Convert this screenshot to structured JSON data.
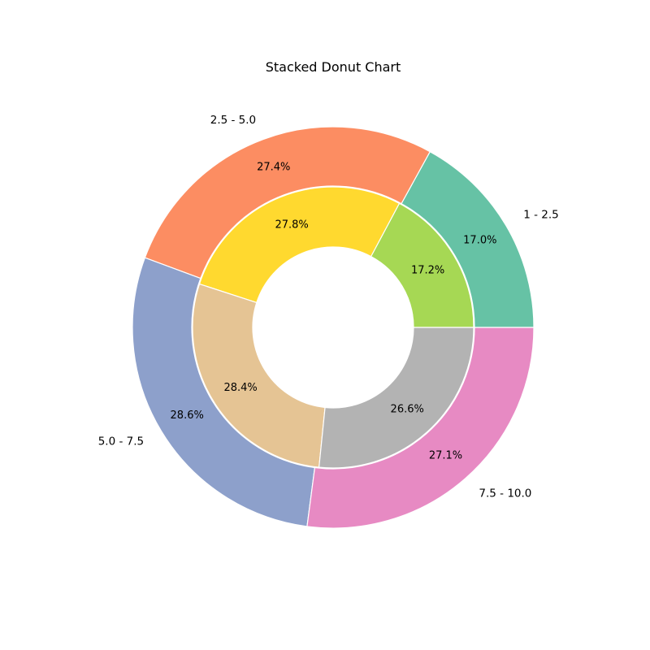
{
  "chart_data": {
    "type": "pie",
    "subtype": "stacked-donut",
    "title": "Stacked Donut Chart",
    "categories": [
      "1 - 2.5",
      "2.5 - 5.0",
      "5.0 - 7.5",
      "7.5 - 10.0"
    ],
    "series": [
      {
        "ring": "outer",
        "values": [
          17.0,
          27.4,
          28.6,
          27.1
        ],
        "labels": [
          "17.0%",
          "27.4%",
          "28.6%",
          "27.1%"
        ],
        "colors": [
          "#66c2a5",
          "#fc8d62",
          "#8da0cb",
          "#e78ac3"
        ]
      },
      {
        "ring": "inner",
        "values": [
          17.2,
          27.8,
          28.4,
          26.6
        ],
        "labels": [
          "17.2%",
          "27.8%",
          "28.4%",
          "26.6%"
        ],
        "colors": [
          "#a6d854",
          "#ffd92f",
          "#e5c494",
          "#b3b3b3"
        ]
      }
    ],
    "start_angle_deg": 0,
    "direction": "counterclockwise",
    "edge_color": "#ffffff",
    "legend": "none"
  }
}
